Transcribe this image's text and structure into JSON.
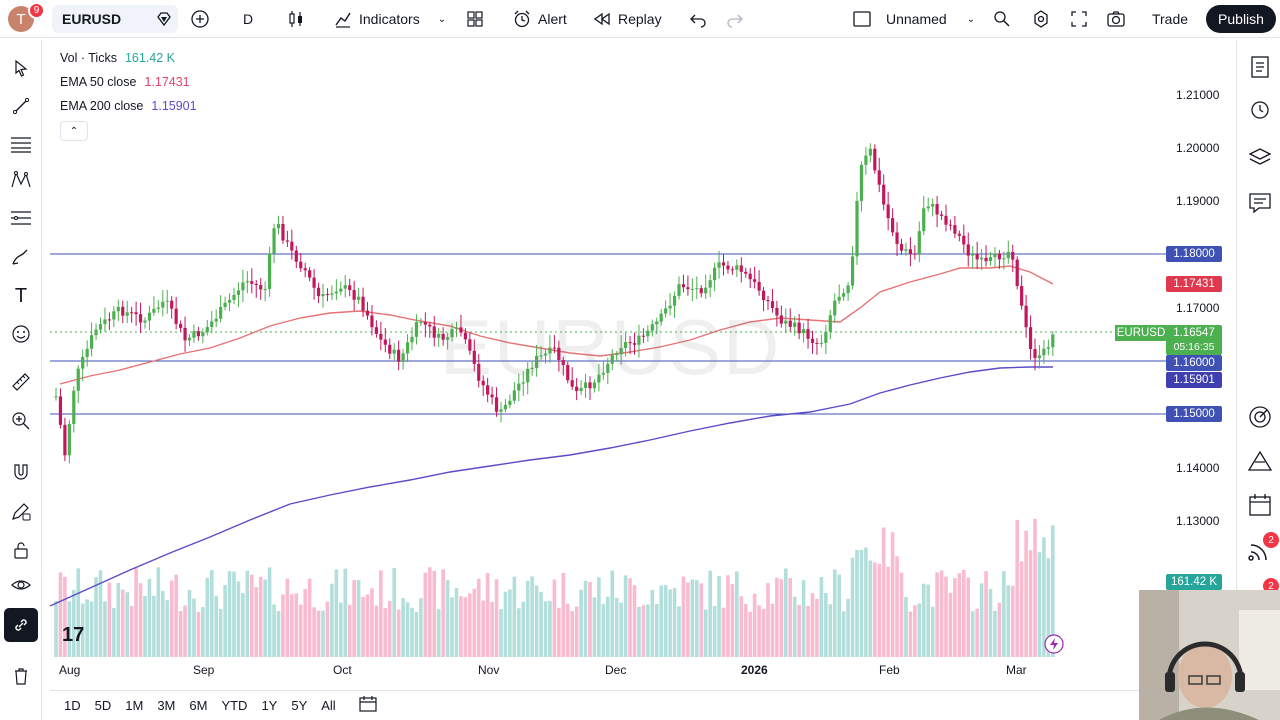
{
  "header": {
    "avatar_letter": "T",
    "avatar_badge": "9",
    "symbol": "EURUSD",
    "interval": "D",
    "indicators_label": "Indicators",
    "alert_label": "Alert",
    "replay_label": "Replay",
    "layout_name": "Unnamed",
    "trade_label": "Trade",
    "publish_label": "Publish"
  },
  "legend": {
    "vol_label": "Vol · Ticks",
    "vol_value": "161.42 K",
    "ema50_label": "EMA 50 close",
    "ema50_value": "1.17431",
    "ema200_label": "EMA 200 close",
    "ema200_value": "1.15901"
  },
  "watermark": "EURUSD",
  "y_axis": [
    "1.21000",
    "1.20000",
    "1.19000",
    "1.18000",
    "1.17000",
    "1.16000",
    "1.15000",
    "1.14000",
    "1.13000"
  ],
  "x_axis": [
    "Aug",
    "Sep",
    "Oct",
    "Nov",
    "Dec",
    "2026",
    "Feb",
    "Mar"
  ],
  "price_labels": {
    "line_118": "1.18000",
    "ema50": "1.17431",
    "ticker": "EURUSD",
    "last": "1.16547",
    "countdown": "05:16:35",
    "line_116": "1.16000",
    "ema200": "1.15901",
    "line_115": "1.15000",
    "volume": "161.42 K"
  },
  "ranges": [
    "1D",
    "5D",
    "1M",
    "3M",
    "6M",
    "YTD",
    "1Y",
    "5Y",
    "All"
  ],
  "right_badges": [
    "2",
    "2"
  ],
  "logo_text": "17",
  "colors": {
    "up": "#4caf50",
    "down": "#c2185b",
    "ema50": "#e57373",
    "ema200": "#5c4bc9",
    "hline": "#3f51b5",
    "up_vol": "#b2dfdb",
    "down_vol": "#f8bbd0"
  },
  "chart_data": {
    "type": "candlestick",
    "y_range": [
      1.125,
      1.215
    ],
    "horizontal_lines": [
      1.18,
      1.16,
      1.15
    ],
    "ema50_last": 1.17431,
    "ema200_last": 1.15901,
    "last_price": 1.16547
  }
}
